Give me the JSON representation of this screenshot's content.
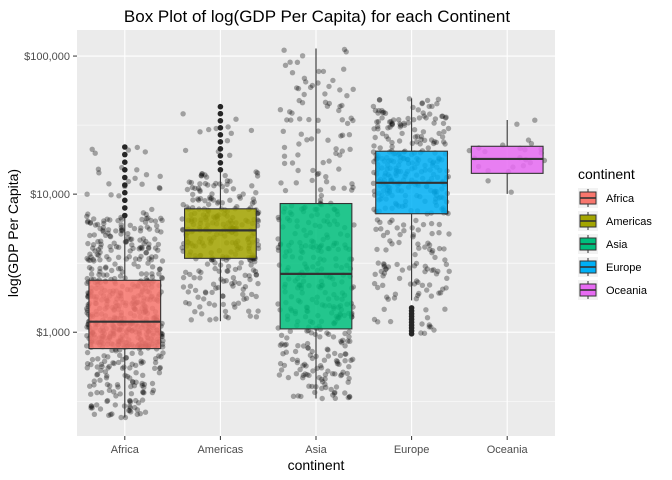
{
  "chart_data": {
    "type": "box",
    "title": "Box Plot of log(GDP Per Capita) for each Continent",
    "xlabel": "continent",
    "ylabel": "log(GDP Per Capita)",
    "y_scale": "log10",
    "ylim": [
      241,
      113523
    ],
    "y_ticks": [
      {
        "value": 1000,
        "label": "$1,000"
      },
      {
        "value": 10000,
        "label": "$10,000"
      },
      {
        "value": 100000,
        "label": "$100,000"
      }
    ],
    "grid": true,
    "legend": {
      "title": "continent",
      "position": "right"
    },
    "series": [
      {
        "name": "Africa",
        "color": "#F8766D",
        "n": 624,
        "stats": {
          "min": 241,
          "q1": 761,
          "median": 1192,
          "q3": 2377,
          "max": 6900
        },
        "outliers_range": [
          7000,
          21951
        ]
      },
      {
        "name": "Americas",
        "color": "#A3A500",
        "n": 300,
        "stats": {
          "min": 1202,
          "q1": 3428,
          "median": 5466,
          "q3": 7830,
          "max": 14500
        },
        "outliers_range": [
          15000,
          42952
        ]
      },
      {
        "name": "Asia",
        "color": "#00BF7D",
        "n": 396,
        "stats": {
          "min": 331,
          "q1": 1057,
          "median": 2647,
          "q3": 8549,
          "max": 113523
        },
        "outliers_range": null
      },
      {
        "name": "Europe",
        "color": "#00B0F6",
        "n": 360,
        "stats": {
          "min": 1700,
          "q1": 7213,
          "median": 12082,
          "q3": 20461,
          "max": 49357
        },
        "outliers_range": [
          974,
          1500
        ]
      },
      {
        "name": "Oceania",
        "color": "#E76BF3",
        "n": 24,
        "stats": {
          "min": 10040,
          "q1": 14142,
          "median": 17983,
          "q3": 22214,
          "max": 34435
        },
        "outliers_range": null
      }
    ]
  }
}
